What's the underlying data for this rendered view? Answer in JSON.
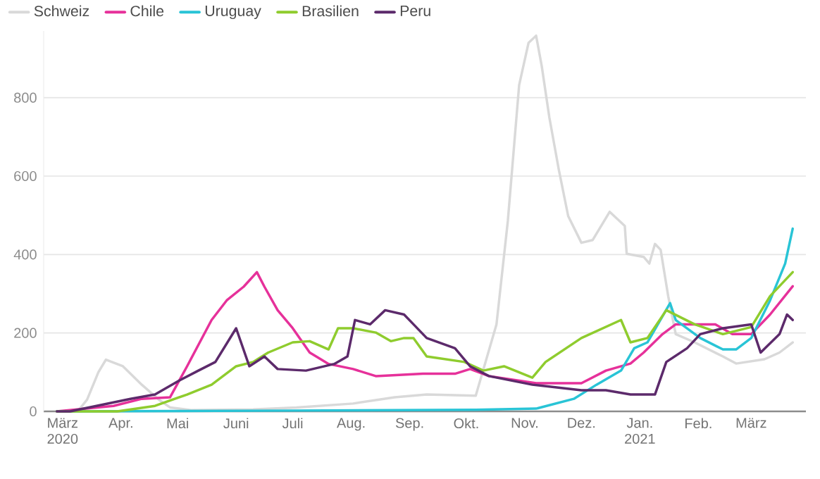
{
  "chart_data": {
    "type": "line",
    "xlim": [
      "2020-02-20",
      "2021-03-30"
    ],
    "ylim": [
      0,
      970
    ],
    "yticks": [
      0,
      200,
      400,
      600,
      800
    ],
    "xticks": [
      {
        "value": "2020-03-01",
        "label": "März 2020"
      },
      {
        "value": "2020-04-01",
        "label": "Apr."
      },
      {
        "value": "2020-05-01",
        "label": "Mai"
      },
      {
        "value": "2020-06-01",
        "label": "Juni"
      },
      {
        "value": "2020-07-01",
        "label": "Juli"
      },
      {
        "value": "2020-08-01",
        "label": "Aug."
      },
      {
        "value": "2020-09-01",
        "label": "Sep."
      },
      {
        "value": "2020-10-01",
        "label": "Okt."
      },
      {
        "value": "2020-11-01",
        "label": "Nov."
      },
      {
        "value": "2020-12-01",
        "label": "Dez."
      },
      {
        "value": "2021-01-01",
        "label": "Jan. 2021"
      },
      {
        "value": "2021-02-01",
        "label": "Feb."
      },
      {
        "value": "2021-03-01",
        "label": "März"
      }
    ],
    "grid": "y",
    "legend": "top left",
    "series": [
      {
        "name": "Schweiz",
        "color": "#d9d9d9",
        "x": [
          "2020-02-27",
          "2020-03-09",
          "2020-03-14",
          "2020-03-20",
          "2020-03-24",
          "2020-04-02",
          "2020-04-12",
          "2020-04-21",
          "2020-04-27",
          "2020-05-08",
          "2020-06-10",
          "2020-07-03",
          "2020-08-02",
          "2020-08-24",
          "2020-09-10",
          "2020-10-06",
          "2020-10-17",
          "2020-10-23",
          "2020-10-29",
          "2020-11-03",
          "2020-11-07",
          "2020-11-10",
          "2020-11-14",
          "2020-11-19",
          "2020-11-24",
          "2020-12-01",
          "2020-12-07",
          "2020-12-16",
          "2020-12-24",
          "2020-12-25",
          "2021-01-03",
          "2021-01-06",
          "2021-01-09",
          "2021-01-12",
          "2021-01-16",
          "2021-01-20",
          "2021-01-30",
          "2021-02-14",
          "2021-02-21",
          "2021-03-08",
          "2021-03-16",
          "2021-03-23"
        ],
        "values": [
          0,
          0,
          30,
          100,
          132,
          115,
          68,
          30,
          10,
          3,
          5,
          10,
          20,
          36,
          43,
          40,
          222,
          485,
          832,
          940,
          958,
          880,
          750,
          617,
          498,
          430,
          437,
          509,
          473,
          402,
          394,
          377,
          427,
          412,
          294,
          197,
          176,
          140,
          122,
          133,
          150,
          176
        ]
      },
      {
        "name": "Chile",
        "color": "#e6319a",
        "x": [
          "2020-02-27",
          "2020-03-28",
          "2020-04-12",
          "2020-04-27",
          "2020-05-06",
          "2020-05-19",
          "2020-05-27",
          "2020-06-05",
          "2020-06-12",
          "2020-06-16",
          "2020-06-23",
          "2020-07-01",
          "2020-07-10",
          "2020-07-20",
          "2020-08-02",
          "2020-08-14",
          "2020-09-08",
          "2020-09-25",
          "2020-10-03",
          "2020-10-13",
          "2020-11-07",
          "2020-12-01",
          "2020-12-14",
          "2020-12-27",
          "2021-01-03",
          "2021-01-13",
          "2021-01-20",
          "2021-02-10",
          "2021-02-19",
          "2021-03-01",
          "2021-03-11",
          "2021-03-23"
        ],
        "values": [
          0,
          14,
          32,
          36,
          115,
          233,
          283,
          318,
          355,
          318,
          258,
          212,
          150,
          121,
          108,
          90,
          96,
          96,
          108,
          90,
          72,
          72,
          104,
          122,
          150,
          197,
          222,
          222,
          197,
          197,
          247,
          319
        ]
      },
      {
        "name": "Uruguay",
        "color": "#29c4d6",
        "x": [
          "2020-02-27",
          "2020-07-01",
          "2020-10-06",
          "2020-11-07",
          "2020-11-27",
          "2020-12-09",
          "2020-12-22",
          "2020-12-29",
          "2021-01-05",
          "2021-01-17",
          "2021-01-20",
          "2021-02-02",
          "2021-02-14",
          "2021-02-21",
          "2021-03-01",
          "2021-03-11",
          "2021-03-19",
          "2021-03-23"
        ],
        "values": [
          0,
          2,
          4,
          7,
          32,
          68,
          104,
          161,
          176,
          276,
          233,
          187,
          158,
          158,
          187,
          283,
          377,
          466
        ]
      },
      {
        "name": "Brasilien",
        "color": "#8fcc2e",
        "x": [
          "2020-02-27",
          "2020-03-30",
          "2020-04-19",
          "2020-05-06",
          "2020-05-19",
          "2020-06-01",
          "2020-06-10",
          "2020-06-18",
          "2020-07-01",
          "2020-07-10",
          "2020-07-20",
          "2020-07-25",
          "2020-08-02",
          "2020-08-14",
          "2020-08-22",
          "2020-08-29",
          "2020-09-03",
          "2020-09-10",
          "2020-09-30",
          "2020-10-10",
          "2020-10-21",
          "2020-11-05",
          "2020-11-12",
          "2020-12-01",
          "2020-12-22",
          "2020-12-27",
          "2021-01-05",
          "2021-01-15",
          "2021-01-30",
          "2021-02-14",
          "2021-03-01",
          "2021-03-11",
          "2021-03-23"
        ],
        "values": [
          0,
          0,
          14,
          43,
          68,
          115,
          126,
          150,
          176,
          179,
          158,
          212,
          212,
          201,
          179,
          187,
          187,
          140,
          126,
          104,
          115,
          86,
          126,
          187,
          233,
          176,
          187,
          258,
          222,
          197,
          215,
          294,
          355
        ]
      },
      {
        "name": "Peru",
        "color": "#5c2a6b",
        "x": [
          "2020-02-27",
          "2020-03-05",
          "2020-04-06",
          "2020-04-19",
          "2020-05-02",
          "2020-05-12",
          "2020-05-21",
          "2020-06-01",
          "2020-06-08",
          "2020-06-16",
          "2020-06-23",
          "2020-07-08",
          "2020-07-23",
          "2020-07-30",
          "2020-08-03",
          "2020-08-11",
          "2020-08-19",
          "2020-08-29",
          "2020-09-03",
          "2020-09-10",
          "2020-09-25",
          "2020-10-03",
          "2020-10-13",
          "2020-11-05",
          "2020-12-01",
          "2020-12-14",
          "2020-12-27",
          "2021-01-09",
          "2021-01-15",
          "2021-01-26",
          "2021-02-02",
          "2021-02-14",
          "2021-03-01",
          "2021-03-06",
          "2021-03-16",
          "2021-03-20",
          "2021-03-23"
        ],
        "values": [
          0,
          0,
          32,
          43,
          79,
          104,
          126,
          212,
          115,
          140,
          108,
          104,
          121,
          140,
          233,
          222,
          258,
          247,
          222,
          187,
          161,
          115,
          90,
          68,
          54,
          54,
          43,
          43,
          126,
          161,
          197,
          212,
          222,
          150,
          197,
          247,
          233
        ]
      }
    ]
  }
}
